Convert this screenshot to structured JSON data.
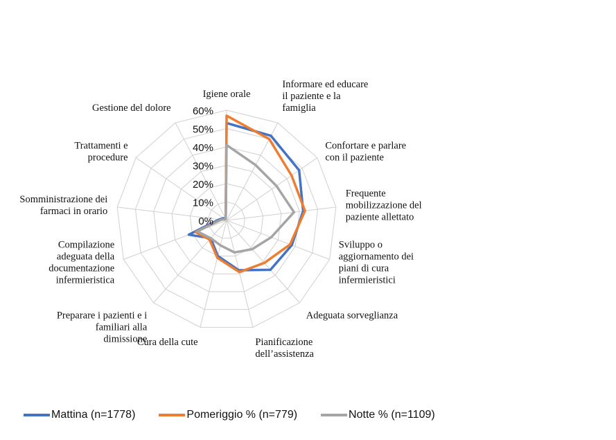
{
  "chart_data": {
    "type": "radar",
    "categories": [
      [
        "Igiene orale"
      ],
      [
        "Informare ed educare",
        "il paziente e la",
        "famiglia"
      ],
      [
        "Confortare e parlare",
        "con il paziente"
      ],
      [
        "Frequente",
        "mobilizzazione del",
        "paziente allettato"
      ],
      [
        "Sviluppo o",
        "aggiornamento dei",
        "piani di cura",
        "infermieristici"
      ],
      [
        "Adeguata sorveglianza"
      ],
      [
        "Pianificazione",
        "dell’assistenza"
      ],
      [
        "Cura della cute"
      ],
      [
        "Preparare i pazienti e i",
        "familiari alla",
        "dimissione"
      ],
      [
        "Compilazione",
        "adeguata della",
        "documentazione",
        "infermieristica"
      ],
      [
        "Somministrazione dei",
        "farmaci in orario"
      ],
      [
        "Trattamenti e",
        "procedure"
      ],
      [
        "Gestione del dolore"
      ]
    ],
    "ticks": [
      "0%",
      "10%",
      "20%",
      "30%",
      "40%",
      "50%",
      "60%"
    ],
    "rlim": [
      0,
      60
    ],
    "series": [
      {
        "name": "Mattina (n=1778)",
        "color": "#4472C4",
        "values": [
          53,
          52,
          48,
          42,
          38,
          36,
          28,
          20,
          13,
          22,
          4,
          2,
          1
        ]
      },
      {
        "name": "Pomeriggio % (n=779)",
        "color": "#ED7D31",
        "values": [
          57,
          50,
          43,
          43,
          37,
          31,
          29,
          21,
          14,
          18,
          3,
          1,
          1
        ]
      },
      {
        "name": "Notte % (n=1109)",
        "color": "#A5A5A5",
        "values": [
          41,
          34,
          33,
          37,
          26,
          21,
          18,
          14,
          13,
          17,
          3,
          1,
          1
        ]
      }
    ],
    "grid": true,
    "legend_position": "bottom"
  }
}
